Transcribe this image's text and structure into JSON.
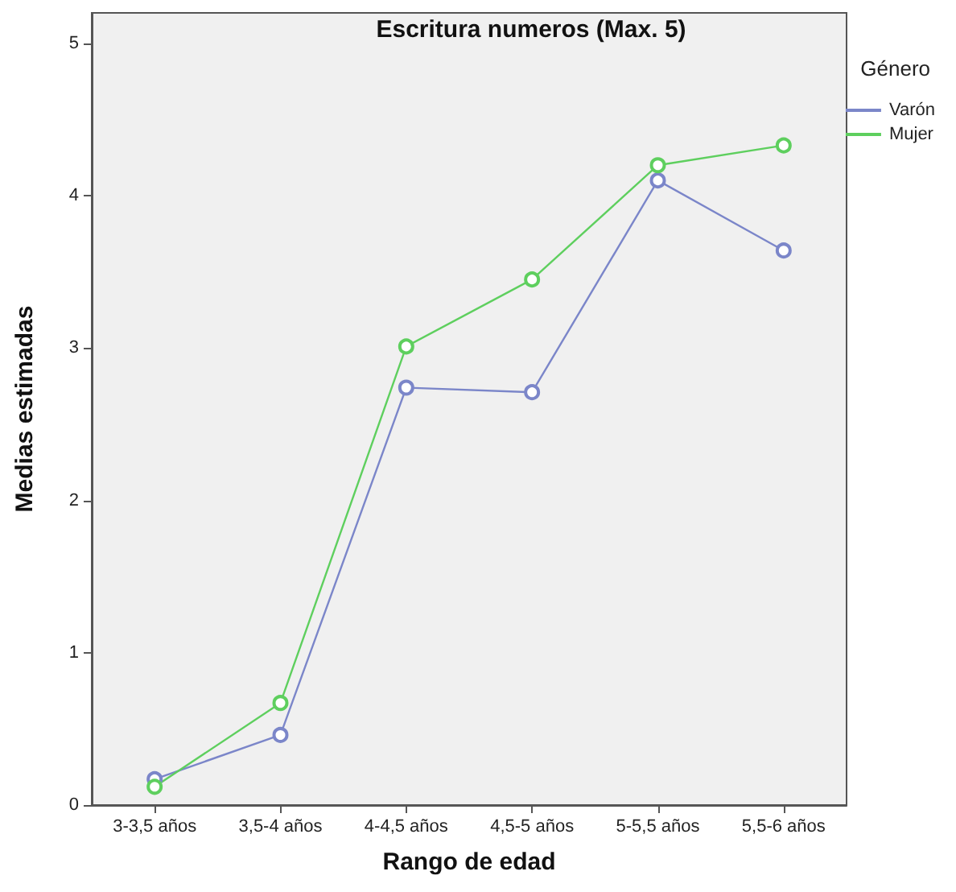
{
  "chart_data": {
    "type": "line",
    "title": "Escritura numeros (Max. 5)",
    "xlabel": "Rango de edad",
    "ylabel": "Medias estimadas",
    "legend_title": "Género",
    "categories": [
      "3-3,5 años",
      "3,5-4 años",
      "4-4,5 años",
      "4,5-5 años",
      "5-5,5 años",
      "5,5-6 años"
    ],
    "series": [
      {
        "name": "Varón",
        "color": "#7b86c9",
        "values": [
          0.17,
          0.46,
          2.74,
          2.71,
          4.1,
          3.64
        ]
      },
      {
        "name": "Mujer",
        "color": "#5ecf5e",
        "values": [
          0.12,
          0.67,
          3.01,
          3.45,
          4.2,
          4.33
        ]
      }
    ],
    "ylim": [
      0,
      5.2
    ],
    "yticks": [
      0,
      1,
      2,
      3,
      4,
      5
    ],
    "grid": false,
    "legend": "top right",
    "marker": "circle",
    "line_style": "solid"
  }
}
